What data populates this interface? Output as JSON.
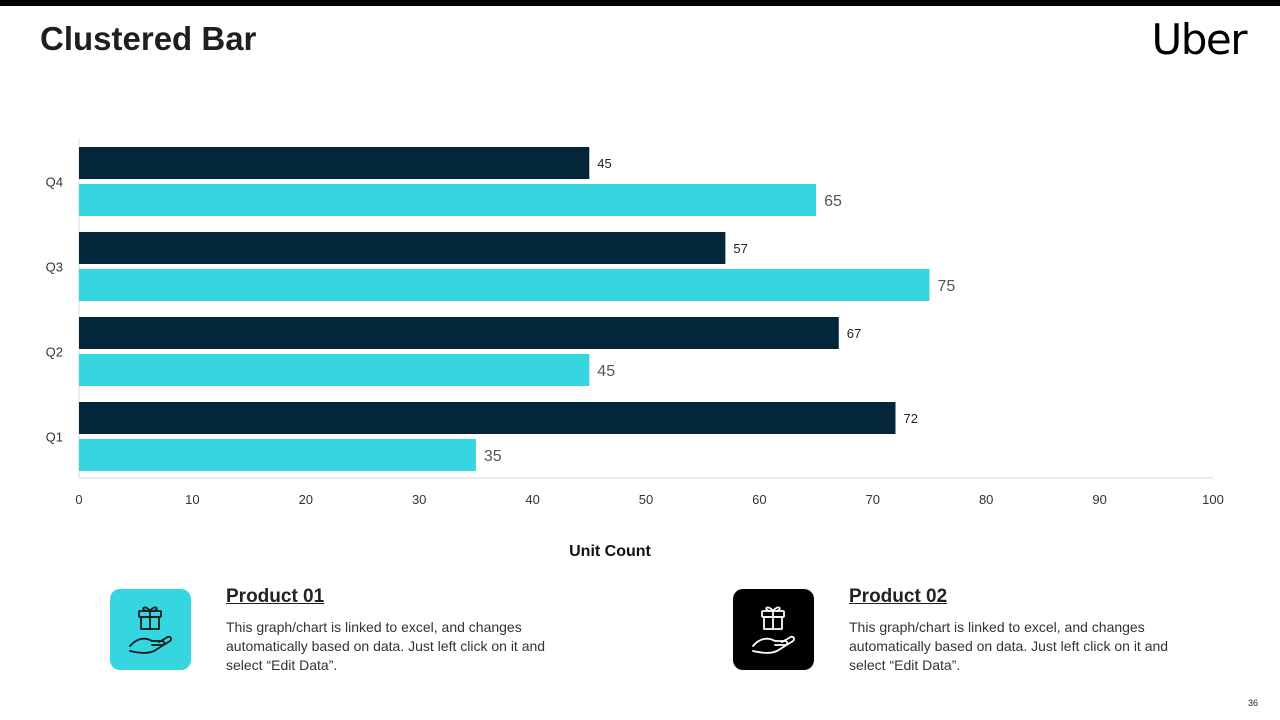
{
  "slide": {
    "title": "Clustered Bar",
    "brand": "Uber",
    "page_number": "36"
  },
  "chart_data": {
    "type": "bar",
    "orientation": "horizontal",
    "categories": [
      "Q4",
      "Q3",
      "Q2",
      "Q1"
    ],
    "series": [
      {
        "name": "Product 01",
        "values": [
          45,
          57,
          67,
          72
        ],
        "color": "#03263A"
      },
      {
        "name": "Product 02",
        "values": [
          65,
          75,
          45,
          35
        ],
        "color": "#36D6E0"
      }
    ],
    "xlabel": "Unit Count",
    "ylabel": "",
    "xlim": [
      0,
      100
    ],
    "xticks": [
      "0",
      "10",
      "20",
      "30",
      "40",
      "50",
      "60",
      "70",
      "80",
      "90",
      "100"
    ],
    "grid": false,
    "data_labels": true,
    "legend": "none"
  },
  "cards": [
    {
      "title": "Product  01",
      "text": "This graph/chart is linked to excel, and changes automatically based on data. Just left click on it and select “Edit Data”.",
      "icon": "gift-hand-icon",
      "icon_bg": "#36D6E0",
      "icon_color": "#1a1a1a"
    },
    {
      "title": "Product  02",
      "text": "This graph/chart is linked to excel, and changes automatically based on data. Just left click on it and select “Edit Data”.",
      "icon": "gift-hand-icon",
      "icon_bg": "#000000",
      "icon_color": "#ffffff"
    }
  ]
}
